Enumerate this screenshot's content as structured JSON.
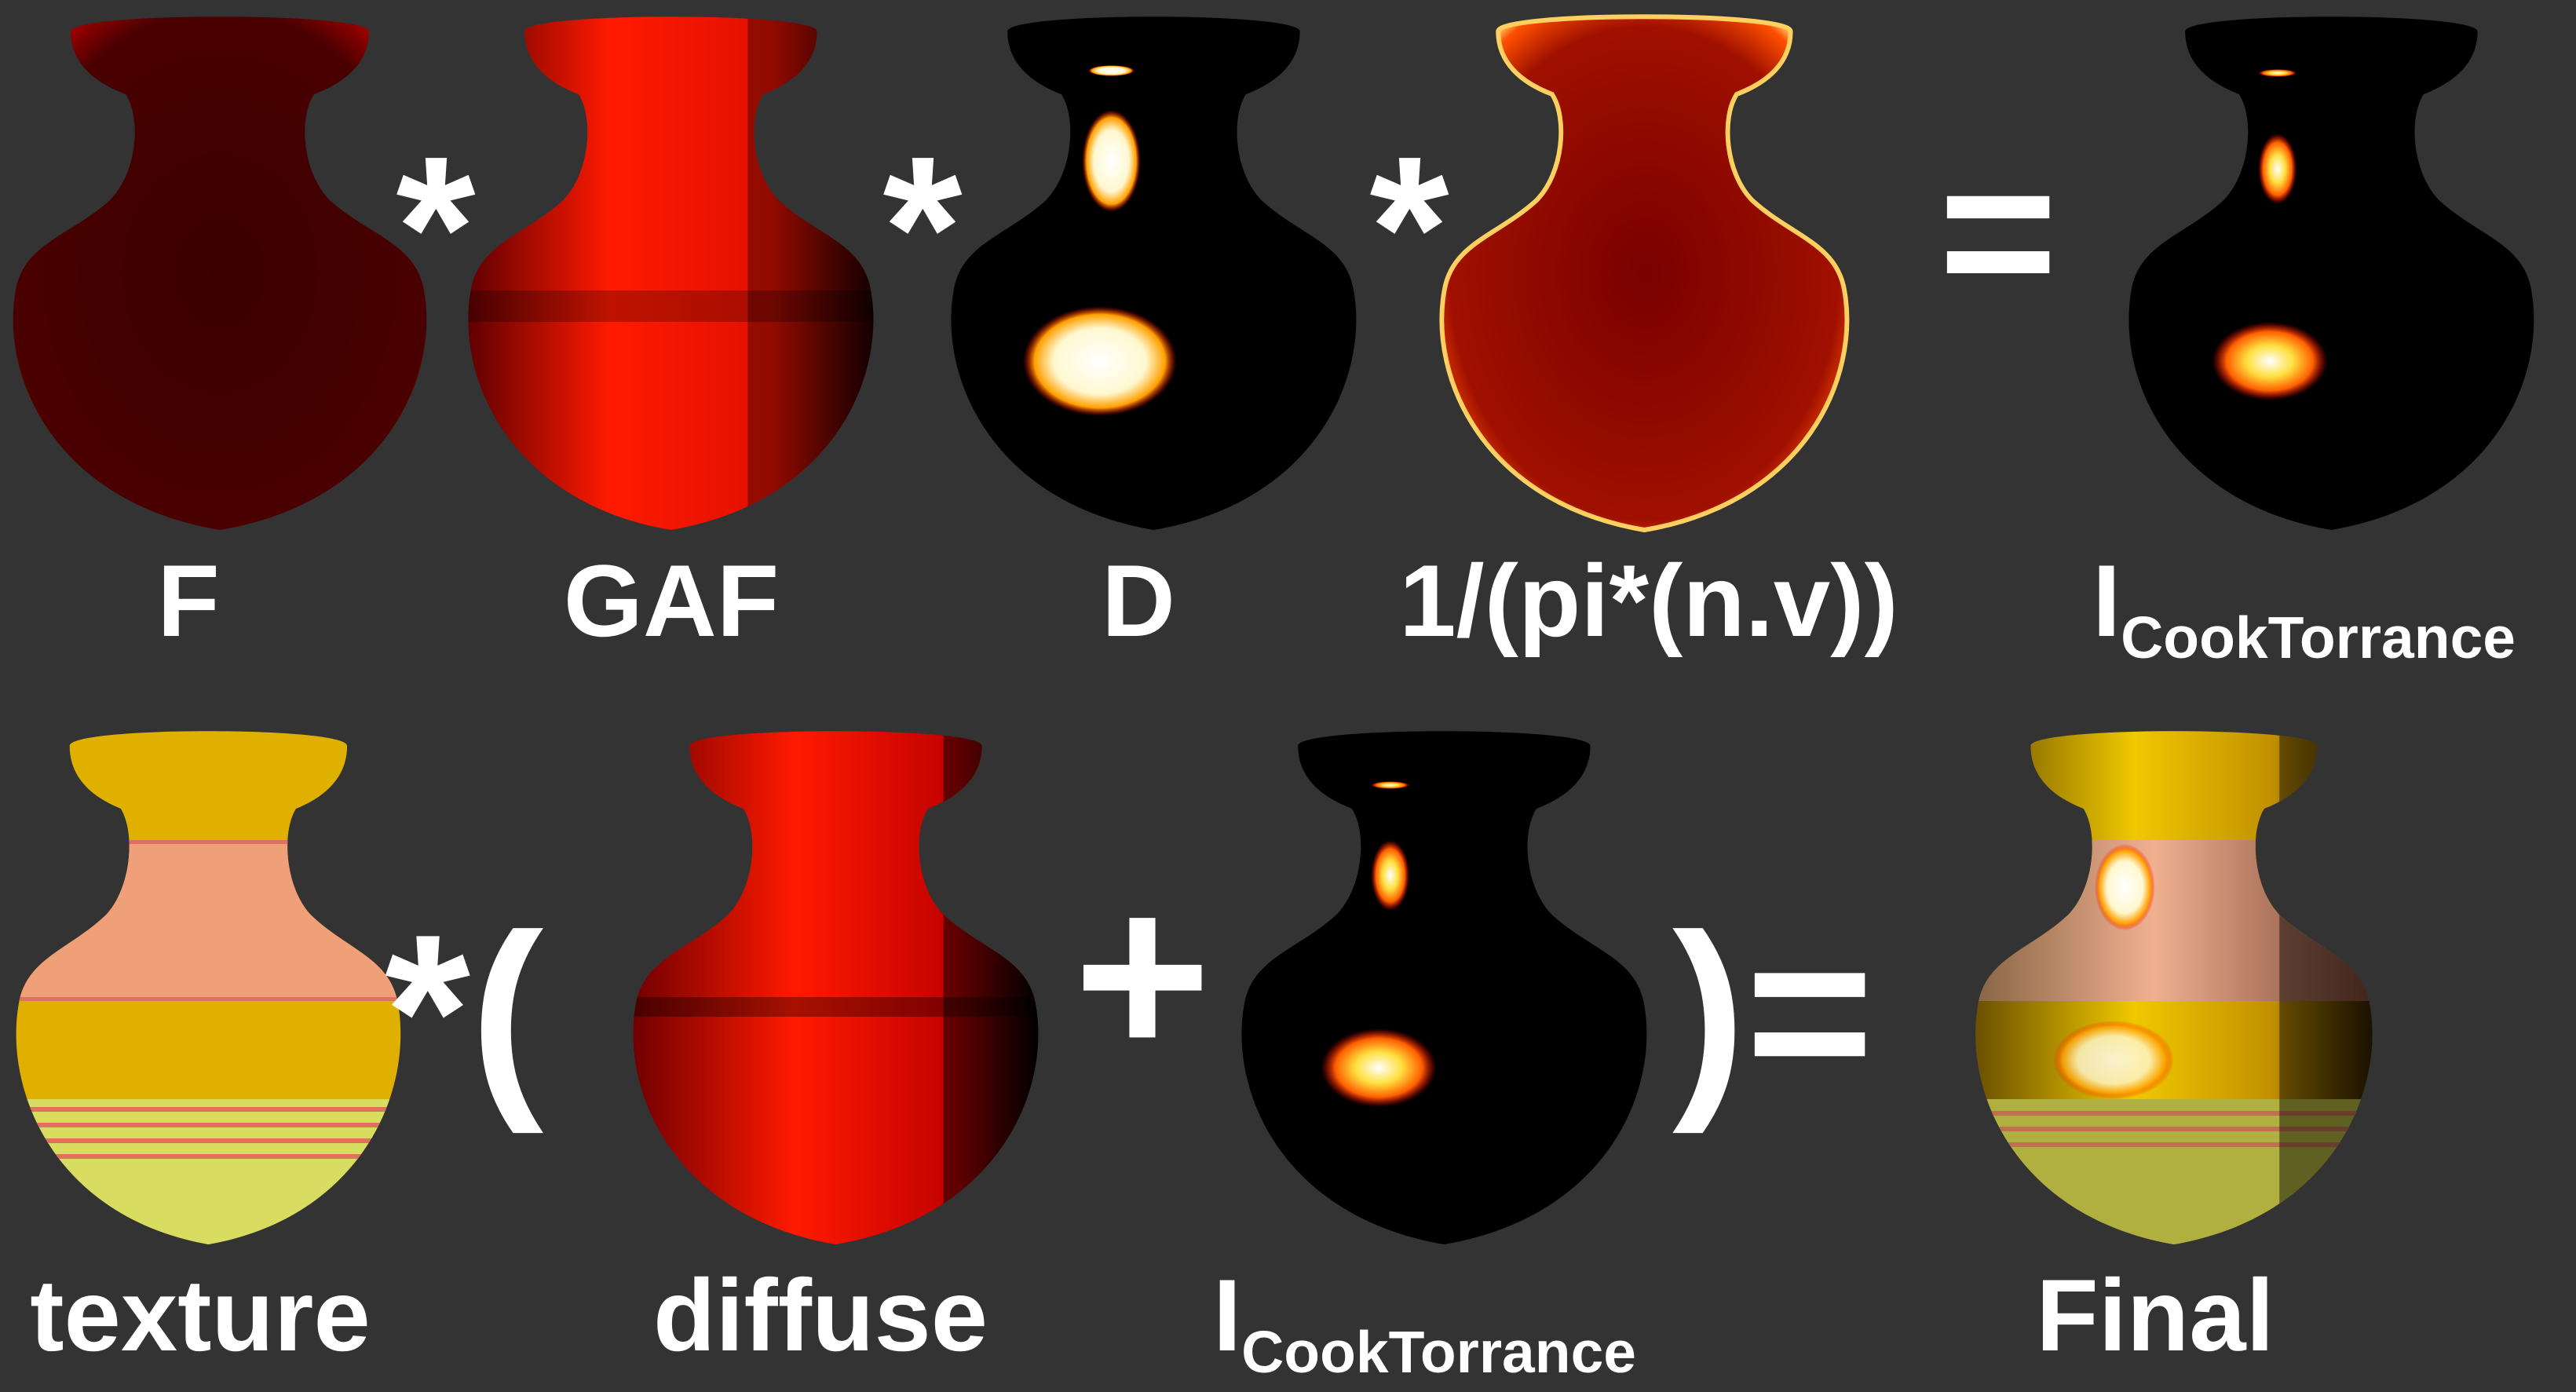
{
  "row1": {
    "labels": [
      "F",
      "GAF",
      "D",
      "1/(pi*(n.v))"
    ],
    "result_label": {
      "main": "I",
      "sub": "CookTorrance"
    },
    "operators": [
      "*",
      "*",
      "*",
      "="
    ]
  },
  "row2": {
    "labels": [
      "texture",
      "diffuse",
      "Final"
    ],
    "sum_label": {
      "main": "I",
      "sub": "CookTorrance"
    },
    "operators": [
      "*(",
      "+",
      ")="
    ]
  },
  "colors": {
    "background": "#333333",
    "text": "#ffffff",
    "red": "#ff1a00",
    "black_vase": "#000000",
    "gold": "#e6b400",
    "peach": "#f0a080",
    "yellow_green": "#d8dc60",
    "highlight": "#fff8c0"
  }
}
